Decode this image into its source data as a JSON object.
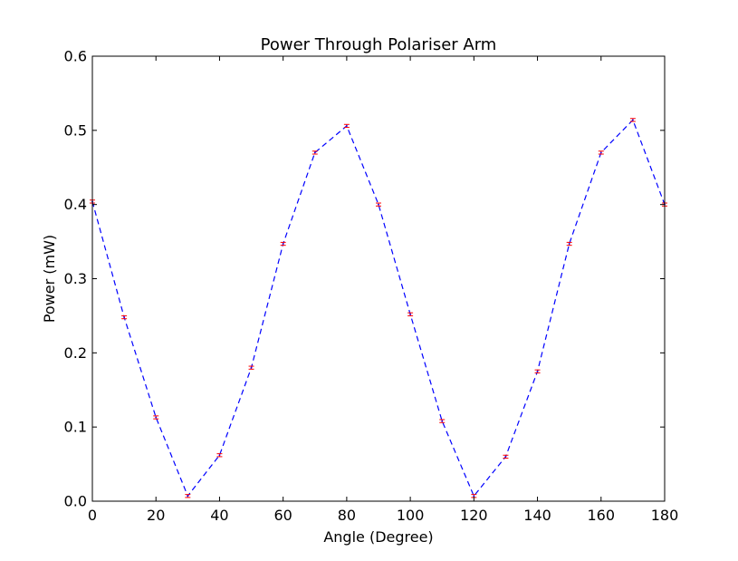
{
  "chart_data": {
    "type": "line",
    "title": "Power Through Polariser Arm",
    "xlabel": "Angle (Degree)",
    "ylabel": "Power (mW)",
    "xlim": [
      0,
      180
    ],
    "ylim": [
      0.0,
      0.6
    ],
    "xticks": [
      0,
      20,
      40,
      60,
      80,
      100,
      120,
      140,
      160,
      180
    ],
    "xtick_labels": [
      "0",
      "20",
      "40",
      "60",
      "80",
      "100",
      "120",
      "140",
      "160",
      "180"
    ],
    "yticks": [
      0.0,
      0.1,
      0.2,
      0.3,
      0.4,
      0.5,
      0.6
    ],
    "ytick_labels": [
      "0.0",
      "0.1",
      "0.2",
      "0.3",
      "0.4",
      "0.5",
      "0.6"
    ],
    "grid": false,
    "series": [
      {
        "line_style": "dashed",
        "color": "#0000ff",
        "error_bar_color": "#ff0000",
        "x": [
          0,
          10,
          20,
          30,
          40,
          50,
          60,
          70,
          80,
          90,
          100,
          110,
          120,
          130,
          140,
          150,
          160,
          170,
          180
        ],
        "y": [
          0.404,
          0.248,
          0.113,
          0.007,
          0.062,
          0.18,
          0.347,
          0.47,
          0.506,
          0.4,
          0.252,
          0.108,
          0.007,
          0.06,
          0.175,
          0.347,
          0.47,
          0.514,
          0.4
        ],
        "yerr": [
          0.002,
          0.002,
          0.002,
          0.002,
          0.002,
          0.002,
          0.002,
          0.002,
          0.002,
          0.002,
          0.002,
          0.002,
          0.002,
          0.002,
          0.002,
          0.002,
          0.002,
          0.002,
          0.002
        ]
      }
    ]
  }
}
